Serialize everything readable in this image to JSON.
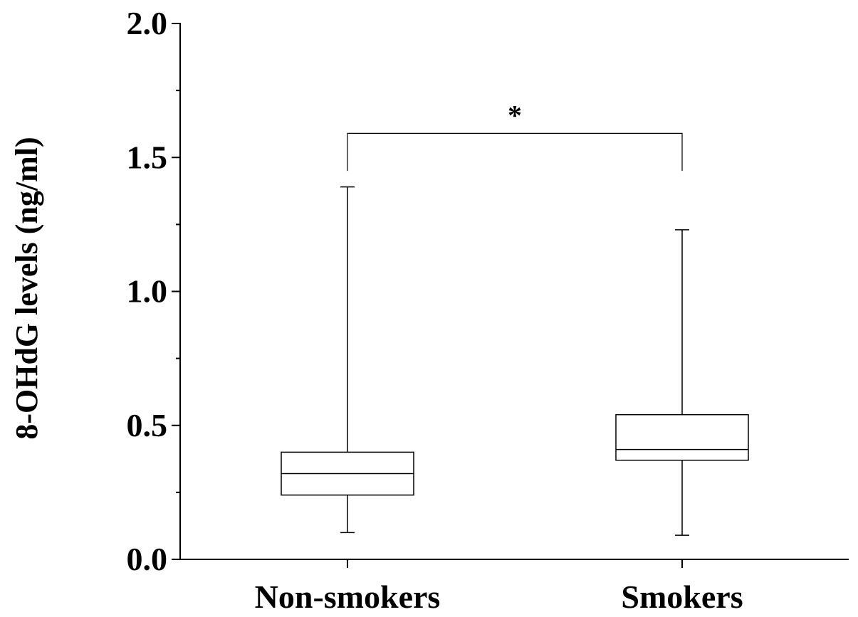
{
  "chart_data": {
    "type": "box",
    "title": "",
    "xlabel": "",
    "ylabel": "8-OHdG levels (ng/ml)",
    "ylim": [
      0.0,
      2.0
    ],
    "yticks": [
      {
        "value": 0.0,
        "label": "0.0"
      },
      {
        "value": 0.5,
        "label": "0.5"
      },
      {
        "value": 1.0,
        "label": "1.0"
      },
      {
        "value": 1.5,
        "label": "1.5"
      },
      {
        "value": 2.0,
        "label": "2.0"
      }
    ],
    "yminor_step": 0.25,
    "grid": false,
    "categories": [
      "Non-smokers",
      "Smokers"
    ],
    "boxes": [
      {
        "category": "Non-smokers",
        "whisker_low": 0.1,
        "q1": 0.24,
        "median": 0.32,
        "q3": 0.4,
        "whisker_high": 1.39
      },
      {
        "category": "Smokers",
        "whisker_low": 0.09,
        "q1": 0.37,
        "median": 0.41,
        "q3": 0.54,
        "whisker_high": 1.23
      }
    ],
    "significance": {
      "between": [
        "Non-smokers",
        "Smokers"
      ],
      "label": "*",
      "bracket_y": 1.59,
      "bracket_drop_to": 1.45
    }
  }
}
